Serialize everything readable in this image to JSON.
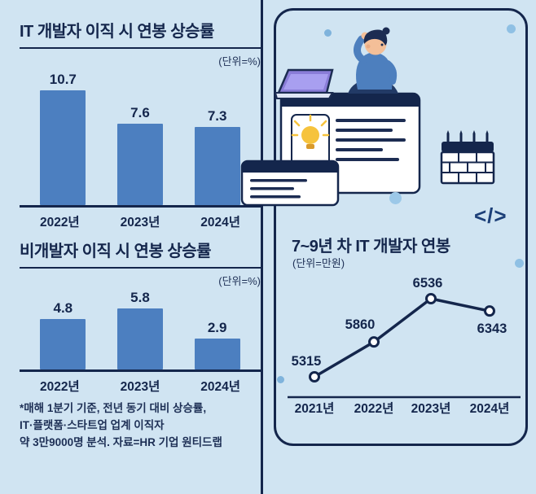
{
  "chart_data": [
    {
      "type": "bar",
      "title": "IT 개발자 이직 시 연봉 상승률",
      "unit_label": "(단위=%)",
      "categories": [
        "2022년",
        "2023년",
        "2024년"
      ],
      "values": [
        10.7,
        7.6,
        7.3
      ],
      "bar_color": "#4c7fc0",
      "grid": false,
      "legend": "none"
    },
    {
      "type": "bar",
      "title": "비개발자 이직 시 연봉 상승률",
      "unit_label": "(단위=%)",
      "categories": [
        "2022년",
        "2023년",
        "2024년"
      ],
      "values": [
        4.8,
        5.8,
        2.9
      ],
      "bar_color": "#4c7fc0",
      "grid": false,
      "legend": "none"
    },
    {
      "type": "line",
      "title": "7~9년 차 IT 개발자 연봉",
      "unit_label": "(단위=만원)",
      "categories": [
        "2021년",
        "2022년",
        "2023년",
        "2024년"
      ],
      "values": [
        5315,
        5860,
        6536,
        6343
      ],
      "line_color": "#14264c",
      "marker": "open-circle",
      "grid": false,
      "legend": "none"
    }
  ],
  "footnote": {
    "line1": "*매해 1분기 기준, 전년 동기 대비 상승률,",
    "line2": "IT·플랫폼·스타트업 업계 이직자",
    "line3": "약 3만9000명 분석. 자료=HR 기업 원티드랩"
  },
  "decorations": {
    "code_symbol": "</>"
  },
  "colors": {
    "background": "#d0e4f2",
    "navy": "#14264c",
    "bar_blue": "#4c7fc0",
    "bulb_yellow": "#f6c33d",
    "laptop_purple": "#8a7dd8"
  }
}
